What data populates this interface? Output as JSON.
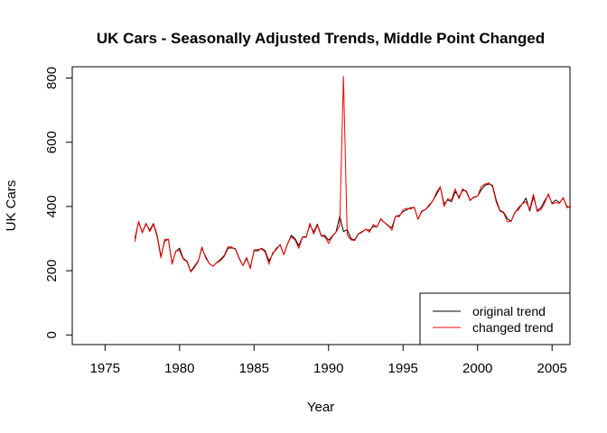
{
  "chart_data": {
    "type": "line",
    "title": "UK Cars - Seasonally Adjusted Trends, Middle Point Changed",
    "xlabel": "Year",
    "ylabel": "UK Cars",
    "xlim": [
      1972.8,
      2006.2
    ],
    "ylim": [
      -30,
      835
    ],
    "x_ticks": [
      "1975",
      "1980",
      "1985",
      "1990",
      "1995",
      "2000",
      "2005"
    ],
    "y_ticks": [
      "0",
      "200",
      "400",
      "600",
      "800"
    ],
    "grid": false,
    "legend_position": "bottom-right",
    "x_start": 1977.0,
    "x_step": 0.25,
    "series": [
      {
        "name": "original trend",
        "color": "#000000",
        "values": [
          300,
          352,
          318,
          346,
          326,
          347,
          310,
          245,
          292,
          298,
          222,
          260,
          270,
          238,
          230,
          198,
          214,
          230,
          270,
          244,
          222,
          214,
          225,
          232,
          245,
          270,
          271,
          268,
          240,
          216,
          238,
          210,
          262,
          262,
          270,
          262,
          230,
          252,
          270,
          280,
          250,
          284,
          310,
          300,
          278,
          305,
          306,
          343,
          320,
          345,
          310,
          310,
          295,
          308,
          320,
          370,
          322,
          328,
          300,
          296,
          315,
          322,
          328,
          326,
          338,
          336,
          360,
          350,
          340,
          334,
          370,
          372,
          384,
          390,
          396,
          397,
          360,
          384,
          390,
          402,
          418,
          438,
          460,
          408,
          420,
          415,
          446,
          430,
          450,
          448,
          420,
          428,
          432,
          452,
          466,
          470,
          466,
          420,
          388,
          382,
          362,
          354,
          380,
          396,
          408,
          426,
          386,
          430,
          388,
          396,
          418,
          436,
          410,
          420,
          412,
          426,
          400,
          396
        ]
      },
      {
        "name": "changed trend",
        "color": "#ff0000",
        "values": [
          290,
          354,
          320,
          348,
          322,
          344,
          305,
          240,
          298,
          298,
          220,
          262,
          262,
          236,
          228,
          196,
          210,
          228,
          274,
          240,
          222,
          214,
          226,
          236,
          248,
          274,
          274,
          266,
          238,
          216,
          242,
          206,
          265,
          266,
          268,
          258,
          220,
          256,
          266,
          282,
          250,
          284,
          306,
          296,
          270,
          304,
          304,
          348,
          314,
          342,
          308,
          306,
          285,
          306,
          320,
          340,
          805,
          312,
          296,
          294,
          314,
          320,
          330,
          320,
          344,
          336,
          362,
          350,
          342,
          326,
          370,
          368,
          390,
          394,
          392,
          398,
          360,
          386,
          390,
          405,
          418,
          444,
          462,
          400,
          424,
          420,
          455,
          424,
          455,
          445,
          418,
          430,
          432,
          462,
          470,
          474,
          462,
          414,
          386,
          380,
          352,
          354,
          382,
          390,
          408,
          415,
          392,
          438,
          384,
          390,
          410,
          440,
          408,
          412,
          410,
          428,
          396,
          402
        ]
      }
    ]
  }
}
